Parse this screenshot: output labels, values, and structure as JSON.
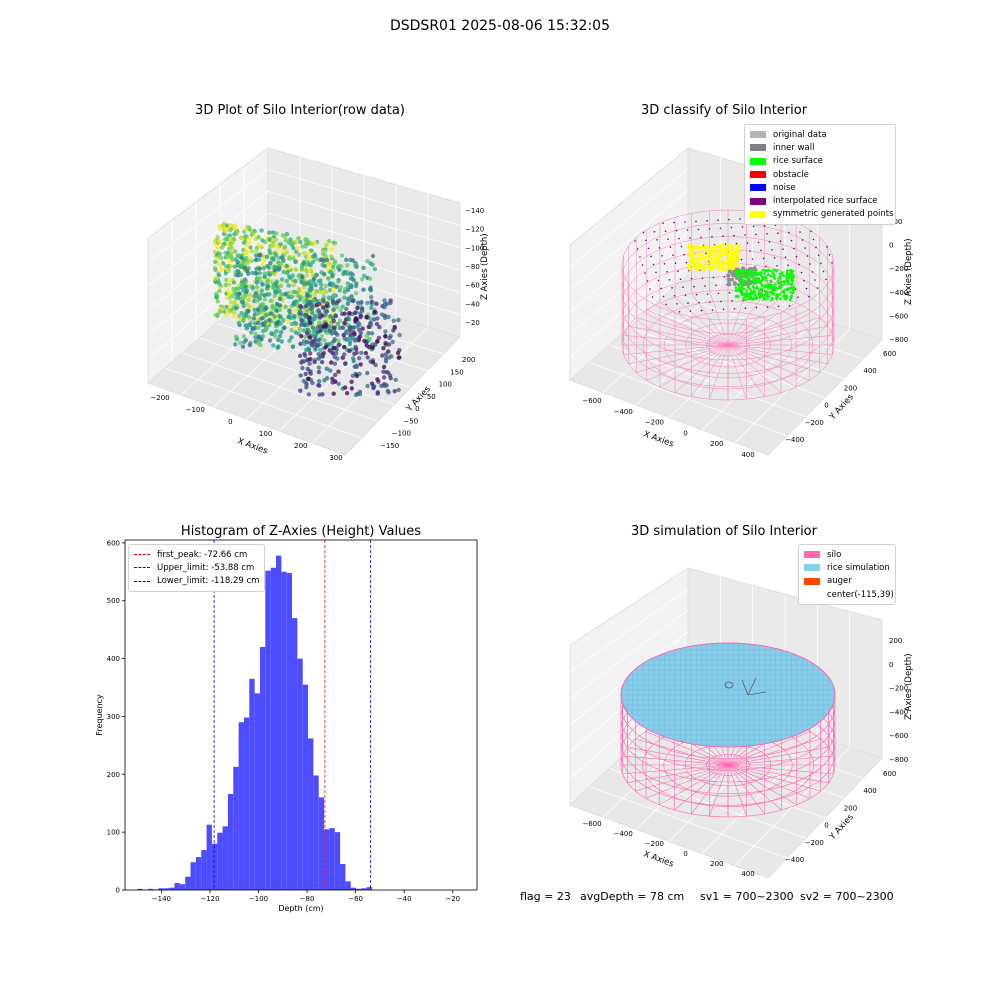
{
  "figure_title": "DSDSR01 2025-08-06 15:32:05",
  "footer": {
    "flag": "flag = 23",
    "avg_depth": "avgDepth = 78 cm",
    "sv1": "sv1 = 700~2300",
    "sv2": "sv2 = 700~2300"
  },
  "chart_data": [
    {
      "type": "scatter",
      "title": "3D Plot of Silo Interior(row data)",
      "xlabel": "X Axies",
      "ylabel": "Y Axies",
      "zlabel": "Z Axies (Depth)",
      "x_ticks": [
        "−200",
        "−100",
        "0",
        "100",
        "200",
        "300"
      ],
      "y_ticks": [
        "−150",
        "−100",
        "−50",
        "0",
        "50",
        "100",
        "150",
        "200"
      ],
      "z_ticks": [
        "−140",
        "−120",
        "−100",
        "−80",
        "−60",
        "−40",
        "−20"
      ],
      "colormap": "viridis"
    },
    {
      "type": "scatter",
      "title": "3D classify of Silo Interior",
      "xlabel": "X Axies",
      "ylabel": "Y Axies",
      "zlabel": "Z Axies (Depth)",
      "x_ticks": [
        "−600",
        "−400",
        "−200",
        "0",
        "200",
        "400"
      ],
      "y_ticks": [
        "−400",
        "−200",
        "0",
        "200",
        "400",
        "600"
      ],
      "z_ticks": [
        "−800",
        "−600",
        "−400",
        "−200",
        "0",
        "200"
      ],
      "legend": [
        {
          "label": "original data",
          "color": "#b3b3b3"
        },
        {
          "label": "inner wall",
          "color": "#808080"
        },
        {
          "label": "rice surface",
          "color": "#00ff00"
        },
        {
          "label": "obstacle",
          "color": "#ff0000"
        },
        {
          "label": "noise",
          "color": "#0000ff"
        },
        {
          "label": "interpolated rice surface",
          "color": "#800080"
        },
        {
          "label": "symmetric generated points",
          "color": "#ffff00"
        }
      ]
    },
    {
      "type": "bar",
      "title": "Histogram of Z-Axies (Height) Values",
      "xlabel": "Depth (cm)",
      "ylabel": "Frequency",
      "xlim": [
        -155,
        -10
      ],
      "ylim": [
        0,
        605
      ],
      "x_ticks": [
        -140,
        -120,
        -100,
        -80,
        -60,
        -40,
        -20
      ],
      "y_ticks": [
        0,
        100,
        200,
        300,
        400,
        500,
        600
      ],
      "bin_start": -150,
      "bin_width": 2.2,
      "values": [
        2,
        0,
        2,
        1,
        3,
        3,
        4,
        12,
        10,
        23,
        48,
        57,
        69,
        113,
        80,
        99,
        110,
        166,
        213,
        290,
        298,
        365,
        340,
        420,
        552,
        557,
        578,
        550,
        548,
        470,
        400,
        355,
        262,
        198,
        160,
        105,
        107,
        100,
        45,
        15,
        4,
        2,
        3,
        5
      ],
      "bar_color": "#4d4dff",
      "vlines": [
        {
          "label": "first_peak: -72.66 cm",
          "x": -72.66,
          "color": "#ff0000"
        },
        {
          "label": "Upper_limit: -53.88 cm",
          "x": -53.88,
          "color": "#0000ff"
        },
        {
          "label": "Lower_limit: -118.29 cm",
          "x": -118.29,
          "color": "#0000ff"
        }
      ],
      "legend": "upper-left"
    },
    {
      "type": "scatter",
      "title": "3D simulation of Silo Interior",
      "xlabel": "X Axies",
      "ylabel": "Y Axies",
      "zlabel": "Z Axies (Depth)",
      "x_ticks": [
        "−600",
        "−400",
        "−200",
        "0",
        "200",
        "400"
      ],
      "y_ticks": [
        "−400",
        "−200",
        "0",
        "200",
        "400",
        "600"
      ],
      "z_ticks": [
        "−800",
        "−600",
        "−400",
        "−200",
        "0",
        "200"
      ],
      "legend": [
        {
          "label": "silo",
          "color": "#ff69b4"
        },
        {
          "label": "rice simulation",
          "color": "#87ceeb"
        },
        {
          "label": "auger",
          "color": "#ff4500"
        },
        {
          "label": "center(-115,39)",
          "color": ""
        }
      ]
    }
  ]
}
